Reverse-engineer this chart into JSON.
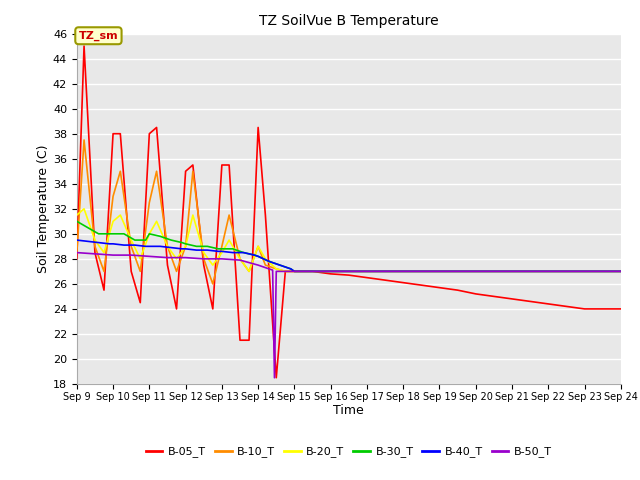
{
  "title": "TZ SoilVue B Temperature",
  "xlabel": "Time",
  "ylabel": "Soil Temperature (C)",
  "ylim": [
    18,
    46
  ],
  "yticks": [
    18,
    20,
    22,
    24,
    26,
    28,
    30,
    32,
    34,
    36,
    38,
    40,
    42,
    44,
    46
  ],
  "xlim": [
    9,
    24
  ],
  "xtick_positions": [
    9,
    10,
    11,
    12,
    13,
    14,
    15,
    16,
    17,
    18,
    19,
    20,
    21,
    22,
    23,
    24
  ],
  "xtick_labels": [
    "Sep 9",
    "Sep 10",
    "Sep 11",
    "Sep 12",
    "Sep 13",
    "Sep 14",
    "Sep 15",
    "Sep 16",
    "Sep 17",
    "Sep 18",
    "Sep 19",
    "Sep 20",
    "Sep 21",
    "Sep 22",
    "Sep 23",
    "Sep 24"
  ],
  "annotation_label": "TZ_sm",
  "background_color": "#e8e8e8",
  "grid_color": "#ffffff",
  "series": {
    "B-05_T": {
      "color": "#ff0000",
      "x": [
        9.0,
        9.2,
        9.5,
        9.75,
        10.0,
        10.2,
        10.5,
        10.75,
        11.0,
        11.2,
        11.5,
        11.75,
        12.0,
        12.2,
        12.5,
        12.75,
        13.0,
        13.2,
        13.5,
        13.75,
        14.0,
        14.2,
        14.5,
        14.75,
        14.85,
        15.0,
        15.5,
        16.0,
        16.5,
        17.0,
        17.5,
        18.0,
        18.5,
        19.0,
        19.5,
        20.0,
        20.5,
        21.0,
        21.5,
        22.0,
        22.5,
        23.0,
        23.5,
        24.0
      ],
      "y": [
        28.0,
        45.0,
        28.5,
        25.5,
        38.0,
        38.0,
        27.0,
        24.5,
        38.0,
        38.5,
        27.5,
        24.0,
        35.0,
        35.5,
        27.5,
        24.0,
        35.5,
        35.5,
        21.5,
        21.5,
        38.5,
        31.5,
        18.5,
        27.0,
        27.0,
        27.0,
        27.0,
        26.8,
        26.7,
        26.5,
        26.3,
        26.1,
        25.9,
        25.7,
        25.5,
        25.2,
        25.0,
        24.8,
        24.6,
        24.4,
        24.2,
        24.0,
        24.0,
        24.0
      ]
    },
    "B-10_T": {
      "color": "#ff8c00",
      "x": [
        9.0,
        9.2,
        9.5,
        9.75,
        10.0,
        10.2,
        10.5,
        10.75,
        11.0,
        11.2,
        11.5,
        11.75,
        12.0,
        12.2,
        12.5,
        12.75,
        13.0,
        13.2,
        13.5,
        13.75,
        14.0,
        14.2,
        14.5,
        14.75,
        15.0,
        16.0,
        17.0,
        18.0,
        19.0,
        20.0,
        21.0,
        22.0,
        23.0,
        24.0
      ],
      "y": [
        28.5,
        37.5,
        29.0,
        27.0,
        33.0,
        35.0,
        29.0,
        27.0,
        32.5,
        35.0,
        29.0,
        27.0,
        29.0,
        35.0,
        28.0,
        26.0,
        29.0,
        31.5,
        28.0,
        27.0,
        29.0,
        27.5,
        27.2,
        27.0,
        27.0,
        27.0,
        27.0,
        27.0,
        27.0,
        27.0,
        27.0,
        27.0,
        27.0,
        27.0
      ]
    },
    "B-20_T": {
      "color": "#ffff00",
      "x": [
        9.0,
        9.2,
        9.5,
        9.75,
        10.0,
        10.2,
        10.5,
        10.75,
        11.0,
        11.2,
        11.5,
        11.75,
        12.0,
        12.2,
        12.5,
        12.75,
        13.0,
        13.2,
        13.5,
        13.75,
        14.0,
        14.2,
        14.5,
        14.75,
        15.0,
        16.0,
        17.0,
        18.0,
        19.0,
        20.0,
        21.0,
        22.0,
        23.0,
        24.0
      ],
      "y": [
        31.5,
        32.0,
        29.5,
        28.5,
        31.0,
        31.5,
        29.5,
        28.0,
        30.0,
        31.0,
        29.0,
        28.0,
        29.0,
        31.5,
        28.5,
        27.5,
        28.5,
        29.5,
        28.0,
        27.0,
        29.0,
        28.0,
        27.2,
        27.0,
        27.0,
        27.0,
        27.0,
        27.0,
        27.0,
        27.0,
        27.0,
        27.0,
        27.0,
        27.0
      ]
    },
    "B-30_T": {
      "color": "#00cc00",
      "x": [
        9.0,
        9.3,
        9.6,
        9.9,
        10.0,
        10.3,
        10.6,
        10.9,
        11.0,
        11.3,
        11.6,
        11.9,
        12.0,
        12.3,
        12.6,
        12.9,
        13.0,
        13.3,
        13.6,
        13.9,
        14.0,
        14.3,
        14.6,
        14.9,
        15.0,
        16.0,
        17.0,
        18.0,
        19.0,
        20.0,
        21.0,
        22.0,
        23.0,
        24.0
      ],
      "y": [
        31.0,
        30.5,
        30.0,
        30.0,
        30.0,
        30.0,
        29.5,
        29.5,
        30.0,
        29.8,
        29.5,
        29.3,
        29.2,
        29.0,
        29.0,
        28.8,
        28.8,
        28.8,
        28.5,
        28.3,
        28.2,
        27.8,
        27.5,
        27.2,
        27.0,
        27.0,
        27.0,
        27.0,
        27.0,
        27.0,
        27.0,
        27.0,
        27.0,
        27.0
      ]
    },
    "B-40_T": {
      "color": "#0000ff",
      "x": [
        9.0,
        9.3,
        9.6,
        9.9,
        10.0,
        10.3,
        10.6,
        10.9,
        11.0,
        11.3,
        11.6,
        11.9,
        12.0,
        12.3,
        12.6,
        12.9,
        13.0,
        13.3,
        13.6,
        13.9,
        14.0,
        14.3,
        14.6,
        14.9,
        15.0,
        16.0,
        17.0,
        18.0,
        19.0,
        20.0,
        21.0,
        22.0,
        23.0,
        24.0
      ],
      "y": [
        29.5,
        29.4,
        29.3,
        29.2,
        29.2,
        29.1,
        29.1,
        29.0,
        29.0,
        29.0,
        28.9,
        28.8,
        28.8,
        28.7,
        28.7,
        28.6,
        28.6,
        28.5,
        28.5,
        28.3,
        28.2,
        27.8,
        27.5,
        27.2,
        27.0,
        27.0,
        27.0,
        27.0,
        27.0,
        27.0,
        27.0,
        27.0,
        27.0,
        27.0
      ]
    },
    "B-50_T": {
      "color": "#9900cc",
      "x": [
        9.0,
        9.5,
        10.0,
        10.5,
        11.0,
        11.5,
        12.0,
        12.5,
        13.0,
        13.5,
        14.0,
        14.4,
        14.45,
        14.5,
        14.55,
        14.6,
        15.0,
        16.0,
        17.0,
        18.0,
        19.0,
        20.0,
        21.0,
        22.0,
        23.0,
        24.0
      ],
      "y": [
        28.5,
        28.4,
        28.3,
        28.3,
        28.2,
        28.1,
        28.1,
        28.0,
        28.0,
        27.9,
        27.5,
        27.1,
        18.5,
        27.0,
        27.0,
        27.0,
        27.0,
        27.0,
        27.0,
        27.0,
        27.0,
        27.0,
        27.0,
        27.0,
        27.0,
        27.0
      ]
    }
  },
  "legend_order": [
    "B-05_T",
    "B-10_T",
    "B-20_T",
    "B-30_T",
    "B-40_T",
    "B-50_T"
  ]
}
